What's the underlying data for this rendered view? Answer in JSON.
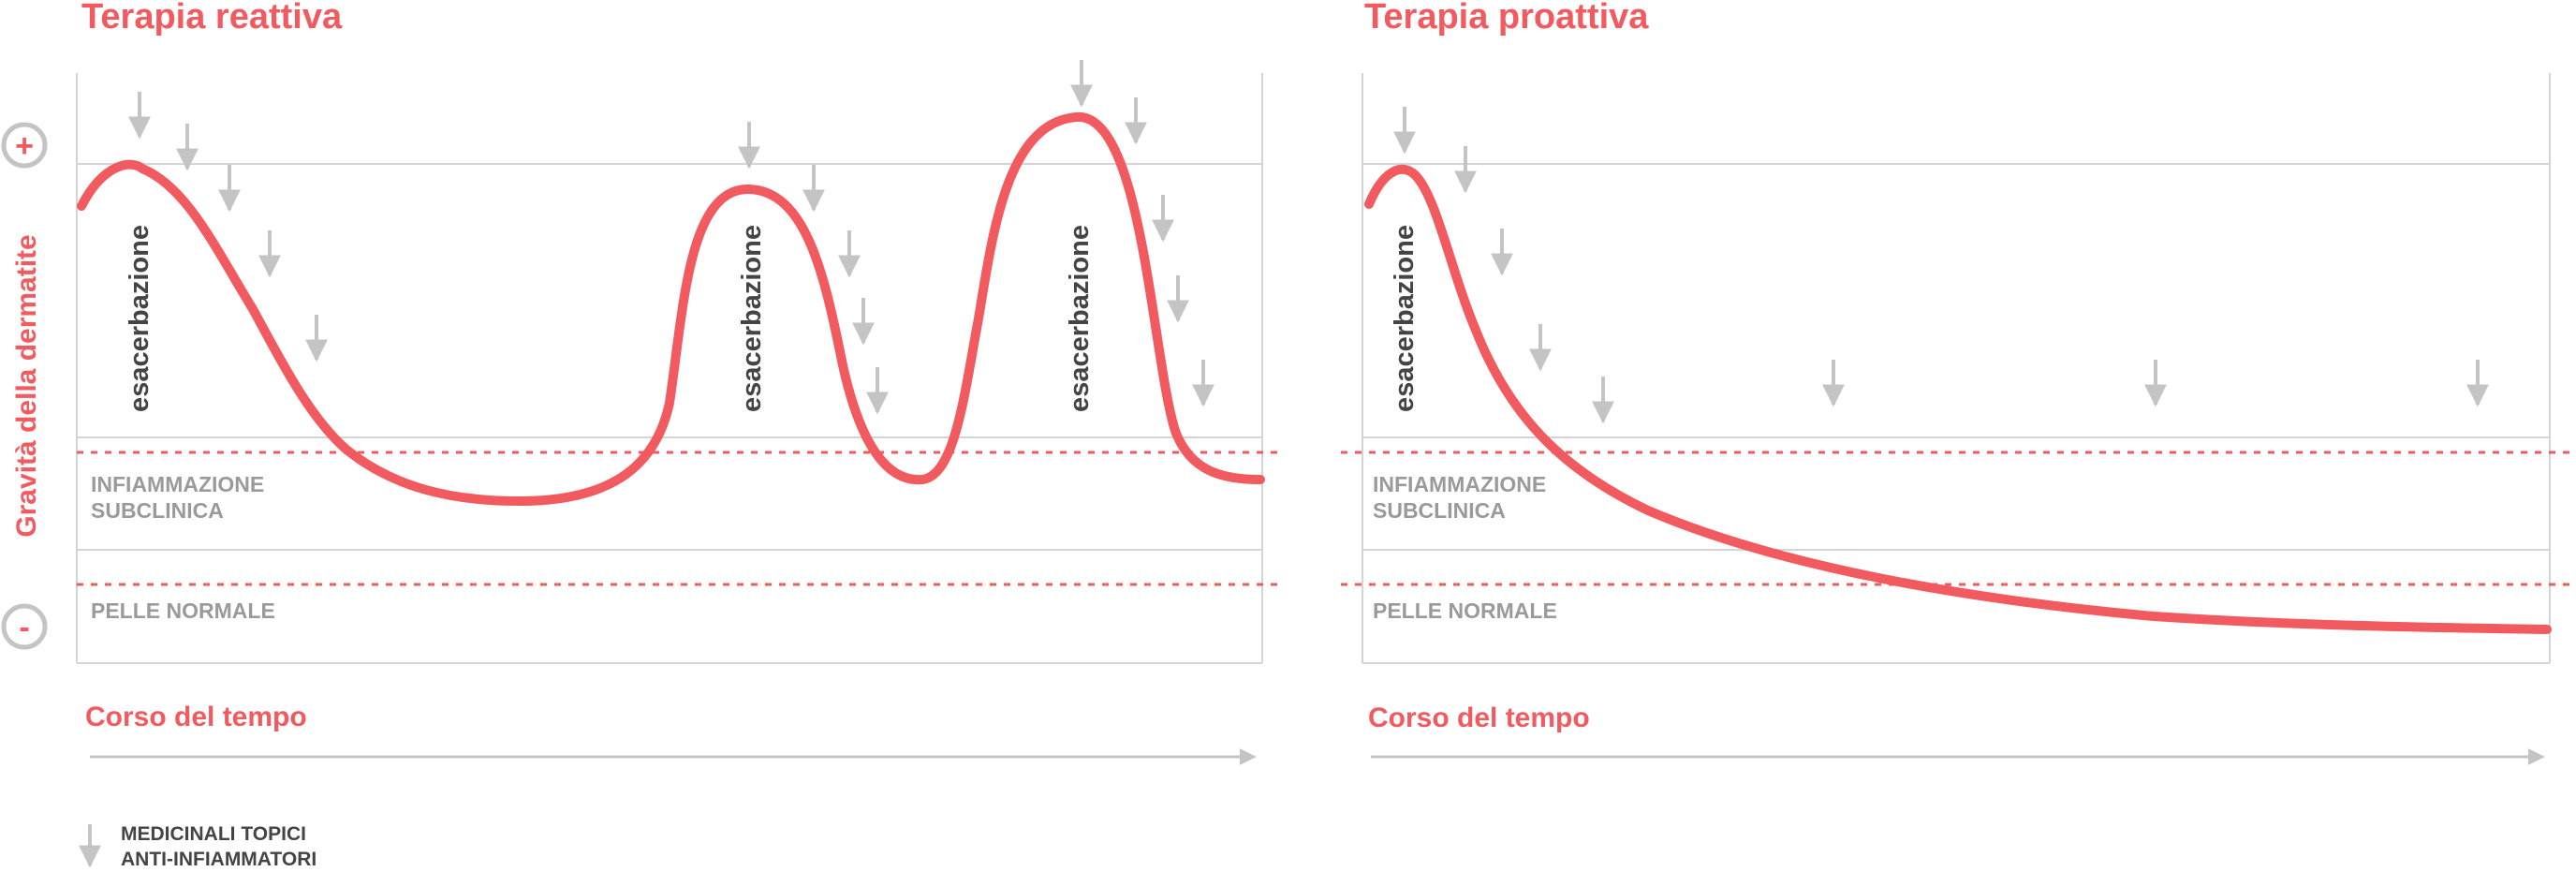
{
  "colors": {
    "accent": "#f15a5f",
    "grid": "#d4d4d4",
    "arrow": "#c4c4c4",
    "text_dark": "#444444",
    "text_gray": "#9a9a9a"
  },
  "y_axis": {
    "label": "Gravità della dermatite",
    "plus_symbol": "+",
    "minus_symbol": "-"
  },
  "panels": [
    {
      "title": "Terapia reattiva",
      "zone_subclinical": [
        "INFIAMMAZIONE",
        "SUBCLINICA"
      ],
      "zone_normal": "PELLE NORMALE",
      "time_label": "Corso del tempo",
      "flare_labels": [
        "esacerbazione",
        "esacerbazione",
        "esacerbazione"
      ]
    },
    {
      "title": "Terapia proattiva",
      "zone_subclinical": [
        "INFIAMMAZIONE",
        "SUBCLINICA"
      ],
      "zone_normal": "PELLE NORMALE",
      "time_label": "Corso del tempo",
      "flare_labels": [
        "esacerbazione"
      ]
    }
  ],
  "legend": {
    "icon": "down-arrow-icon",
    "lines": [
      "MEDICINALI TOPICI",
      "ANTI-INFIAMMATORI"
    ]
  }
}
